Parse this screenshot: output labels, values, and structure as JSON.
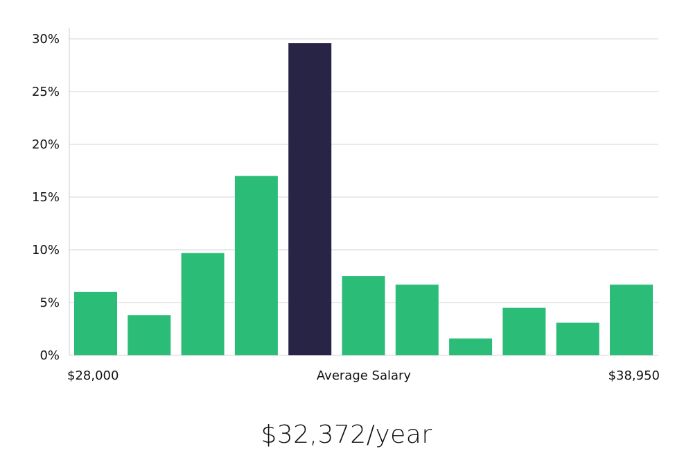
{
  "chart_data": {
    "type": "bar",
    "categories": [
      "$28,000",
      "",
      "",
      "",
      "Average Salary",
      "",
      "",
      "",
      "",
      "",
      "$38,950"
    ],
    "values": [
      6.0,
      3.8,
      9.7,
      17.0,
      29.6,
      7.5,
      6.7,
      1.6,
      4.5,
      3.1,
      6.7
    ],
    "highlight_index": 4,
    "ylim": [
      0,
      30
    ],
    "yticks": [
      "0%",
      "5%",
      "10%",
      "15%",
      "20%",
      "25%",
      "30%"
    ],
    "ytick_values": [
      0,
      5,
      10,
      15,
      20,
      25,
      30
    ],
    "x_labels": {
      "left": "$28,000",
      "center": "Average Salary",
      "right": "$38,950"
    },
    "colors": {
      "bar": "#2bbd77",
      "highlight": "#272446",
      "grid": "#e4e4e8",
      "axis": "#cccccc"
    },
    "grid": true
  },
  "summary": {
    "average_salary": "$32,372/year"
  }
}
